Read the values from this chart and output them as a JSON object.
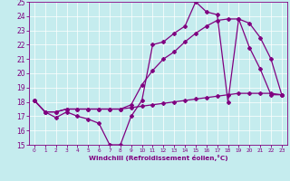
{
  "xlabel": "Windchill (Refroidissement éolien,°C)",
  "xlim": [
    -0.5,
    23.5
  ],
  "ylim": [
    15,
    25
  ],
  "xticks": [
    0,
    1,
    2,
    3,
    4,
    5,
    6,
    7,
    8,
    9,
    10,
    11,
    12,
    13,
    14,
    15,
    16,
    17,
    18,
    19,
    20,
    21,
    22,
    23
  ],
  "yticks": [
    15,
    16,
    17,
    18,
    19,
    20,
    21,
    22,
    23,
    24,
    25
  ],
  "line_color": "#800080",
  "bg_color": "#c5ecee",
  "line1_x": [
    0,
    1,
    2,
    3,
    4,
    5,
    6,
    7,
    8,
    9,
    10,
    11,
    12,
    13,
    14,
    15,
    16,
    17,
    18,
    19,
    20,
    21,
    22,
    23
  ],
  "line1_y": [
    18.1,
    17.3,
    16.9,
    17.3,
    17.0,
    16.8,
    16.5,
    15.0,
    15.0,
    17.0,
    18.1,
    22.0,
    22.2,
    22.8,
    23.3,
    25.0,
    24.3,
    24.1,
    18.0,
    23.8,
    21.8,
    20.3,
    18.5,
    18.5
  ],
  "line2_x": [
    0,
    1,
    2,
    3,
    4,
    5,
    6,
    7,
    8,
    9,
    10,
    11,
    12,
    13,
    14,
    15,
    16,
    17,
    18,
    19,
    20,
    21,
    22,
    23
  ],
  "line2_y": [
    18.1,
    17.3,
    17.3,
    17.5,
    17.5,
    17.5,
    17.5,
    17.5,
    17.5,
    17.8,
    19.2,
    20.2,
    21.0,
    21.5,
    22.2,
    22.8,
    23.3,
    23.7,
    23.8,
    23.8,
    23.5,
    22.5,
    21.0,
    18.5
  ],
  "line3_x": [
    0,
    1,
    2,
    3,
    4,
    5,
    6,
    7,
    8,
    9,
    10,
    11,
    12,
    13,
    14,
    15,
    16,
    17,
    18,
    19,
    20,
    21,
    22,
    23
  ],
  "line3_y": [
    18.1,
    17.3,
    17.3,
    17.5,
    17.5,
    17.5,
    17.5,
    17.5,
    17.5,
    17.6,
    17.7,
    17.8,
    17.9,
    18.0,
    18.1,
    18.2,
    18.3,
    18.4,
    18.5,
    18.6,
    18.6,
    18.6,
    18.6,
    18.5
  ],
  "marker": "D",
  "marker_size": 2.0,
  "line_width": 0.9
}
